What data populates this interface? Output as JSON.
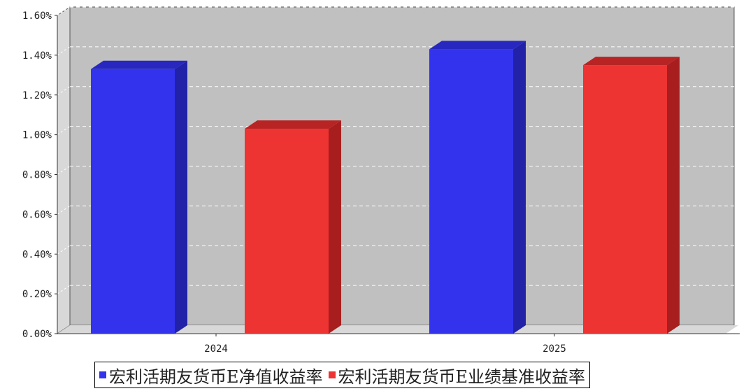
{
  "chart_data": {
    "type": "bar",
    "categories": [
      "2024",
      "2025"
    ],
    "series": [
      {
        "name": "宏利活期友货币E净值收益率",
        "values": [
          1.33,
          1.43
        ],
        "color": "#3333ee",
        "side_color": "#2222a8",
        "top_color": "#2828c0"
      },
      {
        "name": "宏利活期友货币E业绩基准收益率",
        "values": [
          1.03,
          1.35
        ],
        "color": "#ee3333",
        "side_color": "#a81e1e",
        "top_color": "#b82424"
      }
    ],
    "ylim": [
      0,
      1.6
    ],
    "yticks": [
      "0.00%",
      "0.20%",
      "0.40%",
      "0.60%",
      "0.80%",
      "1.00%",
      "1.20%",
      "1.40%",
      "1.60%"
    ],
    "grid": true,
    "legend_position": "bottom",
    "plot_background": "#c0c0c0",
    "wall_color": "#d8d8d8"
  }
}
